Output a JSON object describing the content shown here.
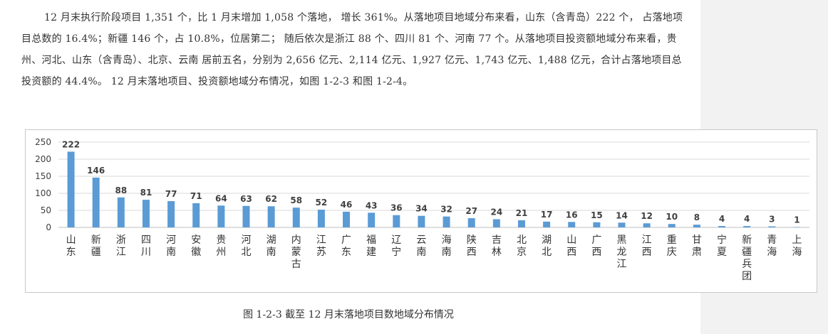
{
  "paragraph": "12 月末执行阶段项目 1,351 个，比 1 月末增加 1,058 个落地， 增长 361%。从落地项目地域分布来看，山东（含青岛）222 个， 占落地项目总数的 16.4%；新疆 146 个，占 10.8%，位居第二； 随后依次是浙江 88 个、四川 81 个、河南 77 个。从落地项目投资额地域分布来看，贵州、河北、山东（含青岛）、北京、云南 居前五名，分别为 2,656 亿元、2,114 亿元、1,927 亿元、1,743 亿元、1,488 亿元，合计占落地项目总投资额的 44.4%。 12 月末落地项目、投资额地域分布情况，如图 1-2-3 和图 1-2-4。",
  "caption": "图 1-2-3  截至 12 月末落地项目数地域分布情况",
  "colors": {
    "bar": "#5b9bd5",
    "grid": "#d9d9d9",
    "text": "#333333"
  },
  "chart_data": {
    "type": "bar",
    "categories": [
      "山东",
      "新疆",
      "浙江",
      "四川",
      "河南",
      "安徽",
      "贵州",
      "河北",
      "湖南",
      "内蒙古",
      "江苏",
      "广东",
      "福建",
      "辽宁",
      "云南",
      "海南",
      "陕西",
      "吉林",
      "北京",
      "湖北",
      "山西",
      "广西",
      "黑龙江",
      "江西",
      "重庆",
      "甘肃",
      "宁夏",
      "新疆兵团",
      "青海",
      "上海"
    ],
    "values": [
      222,
      146,
      88,
      81,
      77,
      71,
      64,
      63,
      62,
      58,
      52,
      46,
      43,
      36,
      34,
      32,
      27,
      24,
      21,
      17,
      16,
      15,
      14,
      12,
      10,
      8,
      4,
      4,
      3,
      1
    ],
    "yticks": [
      0,
      50,
      100,
      150,
      200,
      250
    ],
    "ylim": [
      0,
      250
    ],
    "grid": true,
    "legend": "none"
  }
}
